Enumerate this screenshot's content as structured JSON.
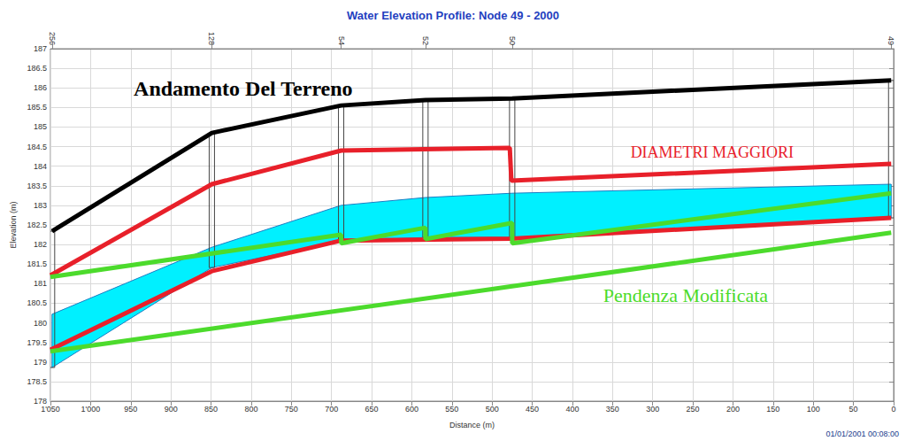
{
  "chart_data": {
    "type": "line",
    "title": "Water Elevation Profile: Node 49 - 2000",
    "x_label": "Distance (m)",
    "y_label": "Elevation (m)",
    "timestamp": "01/01/2001 00:08:00",
    "xlim": [
      1050,
      0
    ],
    "xticks": [
      {
        "value": 1050,
        "label": "1'050"
      },
      {
        "value": 1000,
        "label": "1'000"
      },
      950,
      900,
      850,
      800,
      750,
      700,
      650,
      600,
      550,
      500,
      450,
      400,
      350,
      300,
      250,
      200,
      150,
      100,
      50,
      0
    ],
    "ylim": [
      178,
      187
    ],
    "yticks": [
      178,
      178.5,
      179,
      179.5,
      180,
      180.5,
      181,
      181.5,
      182,
      182.5,
      183,
      183.5,
      184,
      184.5,
      185,
      185.5,
      186,
      186.5,
      187
    ],
    "grid": true,
    "nodes": [
      {
        "label": "256",
        "x": 1048,
        "bottom": 178.86,
        "top": 182.34
      },
      {
        "label": "128",
        "x": 849,
        "bottom": 181.41,
        "top": 184.85
      },
      {
        "label": "54",
        "x": 688,
        "bottom": 182.09,
        "top": 185.55
      },
      {
        "label": "52",
        "x": 583,
        "bottom": 182.18,
        "top": 185.69
      },
      {
        "label": "50",
        "x": 475,
        "bottom": 182.18,
        "top": 185.73
      },
      {
        "label": "49",
        "x": 3,
        "bottom": 182.68,
        "top": 186.19
      }
    ],
    "series": [
      {
        "type": "area",
        "color": "#00f0ff",
        "x": [
          1048,
          849,
          688,
          583,
          475,
          3
        ],
        "upper": [
          180.22,
          181.93,
          183.0,
          183.2,
          183.31,
          183.54
        ],
        "lower": [
          178.86,
          181.41,
          182.09,
          182.18,
          182.18,
          182.68
        ]
      },
      {
        "type": "line",
        "color": "#e8202a",
        "marker": "none",
        "line_style": "solid",
        "x": [
          1050,
          849,
          688,
          478,
          476,
          3
        ],
        "values": [
          181.21,
          183.54,
          184.4,
          184.47,
          183.63,
          184.06
        ]
      },
      {
        "type": "line",
        "color": "#e8202a",
        "marker": "none",
        "line_style": "solid",
        "x": [
          1050,
          849,
          688,
          475,
          3
        ],
        "values": [
          179.31,
          181.32,
          182.1,
          182.15,
          182.68
        ]
      },
      {
        "type": "line",
        "color": "#4cdb2c",
        "marker": "none",
        "line_style": "solid",
        "x": [
          1050,
          688,
          688,
          583,
          583,
          475,
          475,
          3
        ],
        "values": [
          181.17,
          182.25,
          182.03,
          182.43,
          182.14,
          182.55,
          182.03,
          183.31
        ]
      },
      {
        "type": "line",
        "color": "#4cdb2c",
        "marker": "none",
        "line_style": "solid",
        "x": [
          1050,
          3
        ],
        "values": [
          179.27,
          182.3
        ]
      },
      {
        "type": "line",
        "color": "#000000",
        "marker": "none",
        "line_style": "solid",
        "x": [
          1048,
          849,
          688,
          583,
          475,
          3
        ],
        "values": [
          182.34,
          184.85,
          185.55,
          185.69,
          185.73,
          186.19
        ]
      }
    ],
    "annotations": [
      {
        "text": "Andamento Del Terreno",
        "x": 810,
        "y": 185.98,
        "color": "#000000"
      },
      {
        "text": "DIAMETRI MAGGIORI",
        "x": 226,
        "y": 184.35,
        "color": "#e8202a"
      },
      {
        "text": "Pendenza Modificata",
        "x": 259,
        "y": 180.71,
        "color": "#4cdb2c"
      }
    ]
  }
}
